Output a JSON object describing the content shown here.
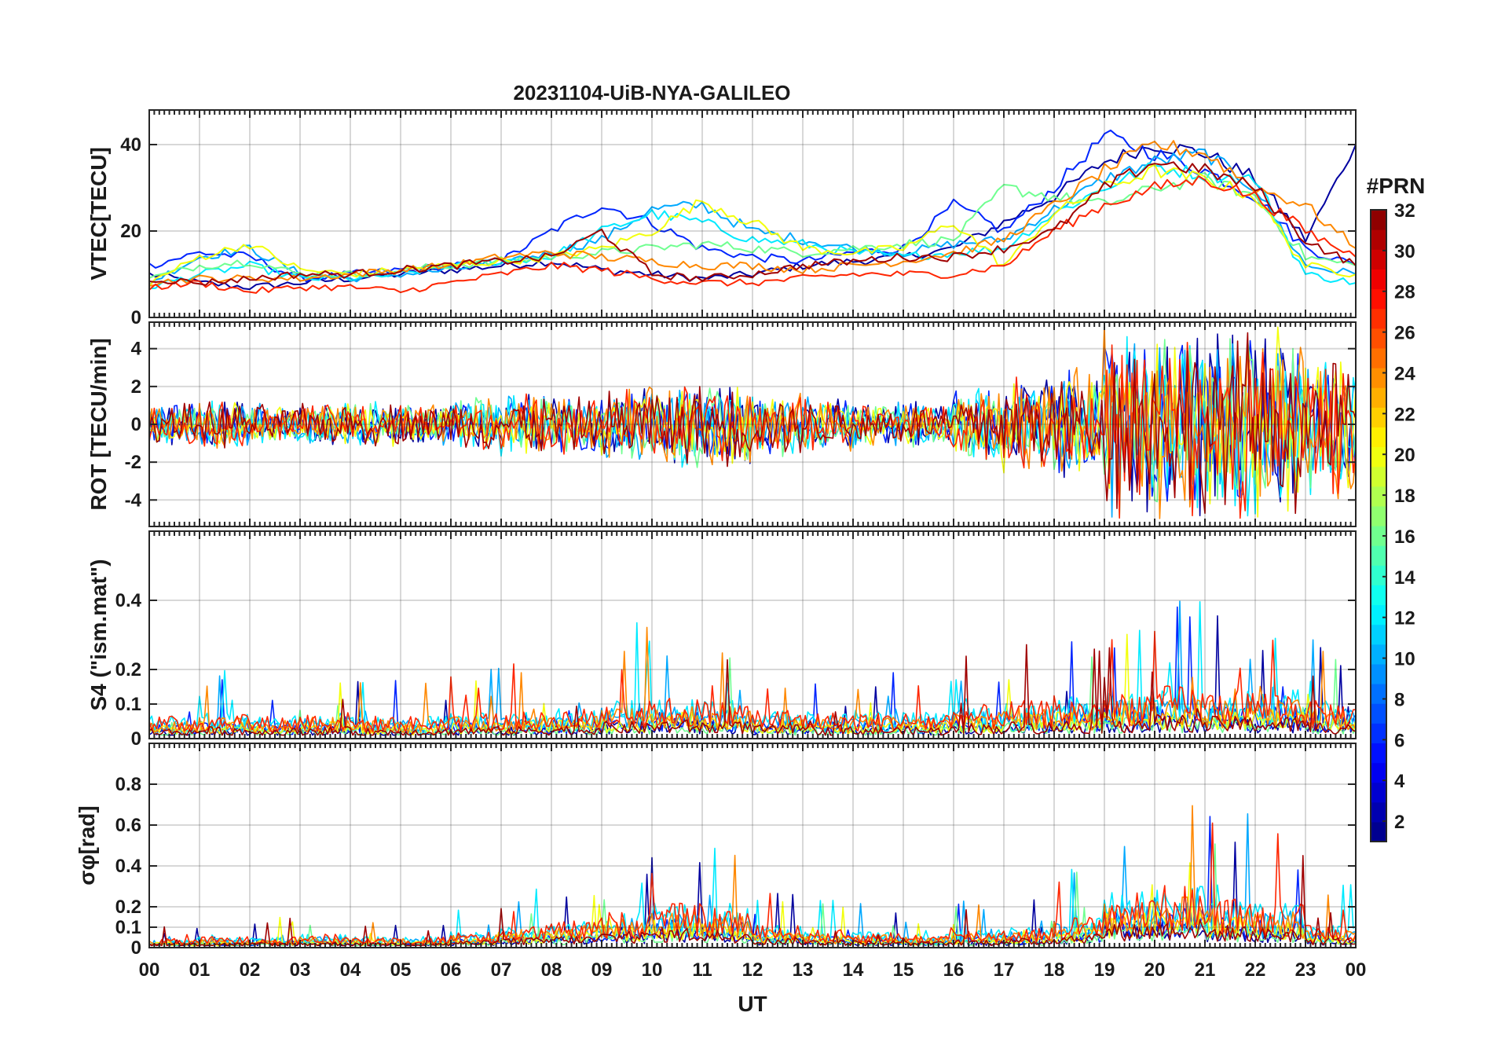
{
  "chart_data": {
    "type": "line",
    "title": "20231104-UiB-NYA-GALILEO",
    "xlabel": "UT",
    "xlim": [
      0,
      24
    ],
    "x_tick_labels": [
      "00",
      "01",
      "02",
      "03",
      "04",
      "05",
      "06",
      "07",
      "08",
      "09",
      "10",
      "11",
      "12",
      "13",
      "14",
      "15",
      "16",
      "17",
      "18",
      "19",
      "20",
      "21",
      "22",
      "23",
      "00"
    ],
    "grid": true,
    "panels": [
      {
        "id": "vtec",
        "ylabel": "VTEC[TECU]",
        "ylim": [
          0,
          48
        ],
        "yticks": [
          0,
          20,
          40
        ],
        "ytick_labels": [
          "0",
          "20",
          "40"
        ],
        "kind": "vtec",
        "series": [
          {
            "prn": 2,
            "x": [
              0,
              1,
              2,
              3,
              4,
              5,
              6,
              7,
              8,
              9,
              10,
              11,
              12,
              13,
              14,
              15,
              16,
              17,
              18,
              19,
              20,
              21,
              22,
              23,
              24
            ],
            "values": [
              10,
              8,
              7,
              8,
              9,
              10,
              11,
              12,
              13,
              11,
              10,
              9,
              10,
              12,
              13,
              14,
              16,
              22,
              28,
              36,
              40,
              38,
              32,
              18,
              40
            ]
          },
          {
            "prn": 6,
            "x": [
              0,
              1,
              2,
              3,
              4,
              5,
              6,
              7,
              8,
              9,
              10,
              11,
              12,
              13,
              14,
              15,
              16,
              17,
              18,
              19,
              20,
              21,
              22,
              23,
              24
            ],
            "values": [
              12,
              15,
              14,
              9,
              10,
              11,
              12,
              13,
              20,
              26,
              22,
              16,
              14,
              13,
              15,
              16,
              26,
              20,
              30,
              42,
              38,
              34,
              28,
              16,
              12
            ]
          },
          {
            "prn": 10,
            "x": [
              0,
              1,
              2,
              3,
              4,
              5,
              6,
              7,
              8,
              9,
              10,
              11,
              12,
              13,
              14,
              15,
              16,
              17,
              18,
              19,
              20,
              21,
              22,
              23,
              24
            ],
            "values": [
              8,
              14,
              16,
              10,
              9,
              10,
              11,
              13,
              15,
              18,
              25,
              26,
              20,
              18,
              16,
              15,
              17,
              18,
              25,
              32,
              36,
              38,
              30,
              12,
              10
            ]
          },
          {
            "prn": 12,
            "x": [
              0,
              1,
              2,
              3,
              4,
              5,
              6,
              7,
              8,
              9,
              10,
              11,
              12,
              13,
              14,
              15,
              16,
              17,
              18,
              19,
              20,
              21,
              22,
              23,
              24
            ],
            "values": [
              7,
              10,
              12,
              9,
              9,
              10,
              12,
              13,
              14,
              20,
              24,
              22,
              18,
              17,
              15,
              14,
              15,
              16,
              24,
              30,
              35,
              33,
              32,
              10,
              8
            ]
          },
          {
            "prn": 16,
            "x": [
              0,
              1,
              2,
              3,
              4,
              5,
              6,
              7,
              8,
              9,
              10,
              11,
              12,
              13,
              14,
              15,
              16,
              17,
              18,
              19,
              20,
              21,
              22,
              23,
              24
            ],
            "values": [
              9,
              12,
              13,
              10,
              10,
              11,
              12,
              13,
              14,
              15,
              16,
              17,
              16,
              15,
              16,
              17,
              18,
              30,
              28,
              26,
              30,
              32,
              28,
              14,
              12
            ]
          },
          {
            "prn": 20,
            "x": [
              0,
              1,
              2,
              3,
              4,
              5,
              6,
              7,
              8,
              9,
              10,
              11,
              12,
              13,
              14,
              15,
              16,
              17,
              18,
              19,
              20,
              21,
              22,
              23,
              24
            ],
            "values": [
              8,
              14,
              17,
              11,
              10,
              11,
              12,
              13,
              14,
              16,
              20,
              27,
              22,
              16,
              15,
              16,
              22,
              12,
              24,
              30,
              34,
              32,
              28,
              12,
              10
            ]
          },
          {
            "prn": 24,
            "x": [
              0,
              1,
              2,
              3,
              4,
              5,
              6,
              7,
              8,
              9,
              10,
              11,
              12,
              13,
              14,
              15,
              16,
              17,
              18,
              19,
              20,
              21,
              22,
              23,
              24
            ],
            "values": [
              8,
              9,
              9,
              9,
              10,
              11,
              12,
              14,
              15,
              14,
              13,
              12,
              12,
              11,
              12,
              13,
              15,
              18,
              26,
              34,
              40,
              38,
              30,
              26,
              16
            ]
          },
          {
            "prn": 27,
            "x": [
              0,
              1,
              2,
              3,
              4,
              5,
              6,
              7,
              8,
              9,
              10,
              11,
              12,
              13,
              14,
              15,
              16,
              17,
              18,
              19,
              20,
              21,
              22,
              23,
              24
            ],
            "values": [
              7,
              8,
              6,
              7,
              7,
              6,
              8,
              10,
              12,
              11,
              9,
              8,
              8,
              9,
              10,
              10,
              10,
              12,
              20,
              26,
              30,
              32,
              28,
              20,
              14
            ]
          },
          {
            "prn": 31,
            "x": [
              0,
              1,
              2,
              3,
              4,
              5,
              6,
              7,
              8,
              9,
              10,
              11,
              12,
              13,
              14,
              15,
              16,
              17,
              18,
              19,
              20,
              21,
              22,
              23,
              24
            ],
            "values": [
              9,
              8,
              9,
              10,
              10,
              11,
              12,
              13,
              14,
              20,
              10,
              9,
              10,
              12,
              13,
              14,
              14,
              16,
              20,
              30,
              36,
              34,
              30,
              18,
              12
            ]
          }
        ]
      },
      {
        "id": "rot",
        "ylabel": "ROT [TECU/min]",
        "ylim": [
          -5.4,
          5.4
        ],
        "yticks": [
          -4,
          -2,
          0,
          2,
          4
        ],
        "ytick_labels": [
          "-4",
          "-2",
          "0",
          "2",
          "4"
        ],
        "kind": "rot",
        "amplitude_by_hour": [
          1.2,
          1.4,
          1.2,
          1.2,
          1.3,
          1.2,
          1.5,
          1.8,
          1.6,
          2.2,
          2.4,
          2.4,
          1.8,
          1.5,
          1.3,
          1.3,
          2.2,
          2.8,
          3.2,
          5.5,
          5.5,
          5.4,
          5.2,
          4.0
        ]
      },
      {
        "id": "s4",
        "ylabel": "S4 (\"ism.mat\")",
        "ylim": [
          0,
          0.6
        ],
        "yticks": [
          0,
          0.1,
          0.2,
          0.4
        ],
        "ytick_labels": [
          "0",
          "0.1",
          "0.2",
          "0.4"
        ],
        "kind": "s4",
        "level_by_hour": [
          0.06,
          0.07,
          0.06,
          0.07,
          0.06,
          0.06,
          0.07,
          0.07,
          0.08,
          0.1,
          0.11,
          0.1,
          0.08,
          0.07,
          0.07,
          0.07,
          0.09,
          0.1,
          0.11,
          0.13,
          0.14,
          0.13,
          0.13,
          0.1
        ]
      },
      {
        "id": "sigma",
        "ylabel": "σφ[rad]",
        "ylim": [
          0,
          1.0
        ],
        "yticks": [
          0,
          0.1,
          0.2,
          0.4,
          0.6,
          0.8
        ],
        "ytick_labels": [
          "0",
          "0.1",
          "0.2",
          "0.4",
          "0.6",
          "0.8"
        ],
        "kind": "sigma",
        "level_by_hour": [
          0.04,
          0.05,
          0.05,
          0.06,
          0.05,
          0.05,
          0.07,
          0.1,
          0.12,
          0.16,
          0.2,
          0.18,
          0.1,
          0.08,
          0.07,
          0.06,
          0.08,
          0.09,
          0.14,
          0.25,
          0.28,
          0.22,
          0.2,
          0.1
        ]
      }
    ],
    "colorbar": {
      "label": "#PRN",
      "range": [
        1,
        32
      ],
      "ticks": [
        2,
        4,
        6,
        8,
        10,
        12,
        14,
        16,
        18,
        20,
        22,
        24,
        26,
        28,
        30,
        32
      ],
      "tick_labels": [
        "2",
        "4",
        "6",
        "8",
        "10",
        "12",
        "14",
        "16",
        "18",
        "20",
        "22",
        "24",
        "26",
        "28",
        "30",
        "32"
      ],
      "colormap": "jet"
    },
    "prn_list": [
      2,
      6,
      10,
      12,
      16,
      20,
      24,
      27,
      31
    ]
  }
}
